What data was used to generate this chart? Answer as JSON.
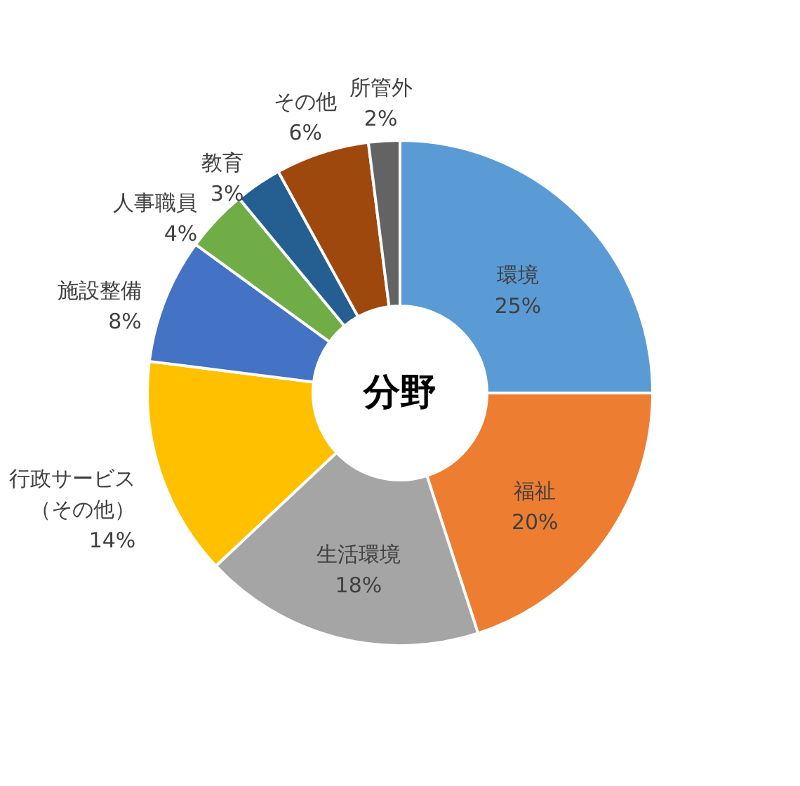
{
  "chart_data": {
    "type": "donut",
    "title": "分野",
    "categories": [
      "環境",
      "福祉",
      "生活環境",
      "行政サービス（その他）",
      "施設整備",
      "人事職員",
      "教育",
      "その他",
      "所管外"
    ],
    "values": [
      25,
      20,
      18,
      14,
      8,
      4,
      3,
      6,
      2
    ],
    "value_labels": [
      "25%",
      "20%",
      "18%",
      "14%",
      "8%",
      "4%",
      "3%",
      "6%",
      "2%"
    ],
    "colors": [
      "#5b9bd5",
      "#ed7d31",
      "#a5a5a5",
      "#ffc000",
      "#4472c4",
      "#70ad47",
      "#255e91",
      "#9e480e",
      "#636363"
    ]
  }
}
